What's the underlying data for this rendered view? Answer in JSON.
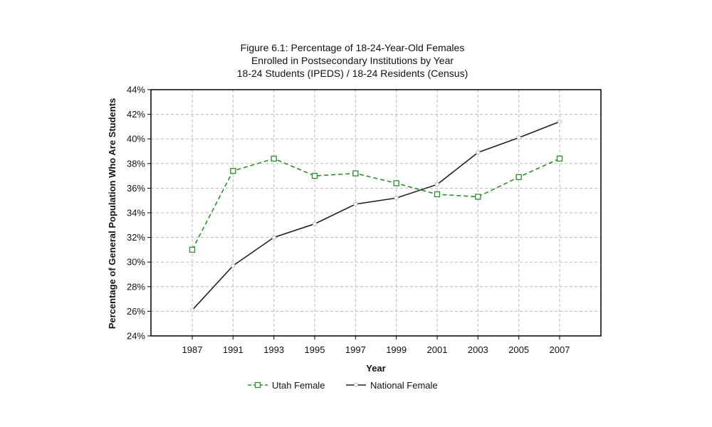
{
  "chart_data": {
    "type": "line",
    "title_lines": [
      "Figure 6.1: Percentage of 18-24-Year-Old Females",
      "Enrolled in Postsecondary Institutions by Year",
      "18-24 Students (IPEDS) / 18-24 Residents (Census)"
    ],
    "xlabel": "Year",
    "ylabel": "Percentage of General Population Who Are Students",
    "categories": [
      "1987",
      "1991",
      "1993",
      "1995",
      "1997",
      "1999",
      "2001",
      "2003",
      "2005",
      "2007"
    ],
    "y_ticks": [
      "24%",
      "26%",
      "28%",
      "30%",
      "32%",
      "34%",
      "36%",
      "38%",
      "40%",
      "42%",
      "44%"
    ],
    "ylim": [
      24,
      44
    ],
    "grid": true,
    "legend_position": "bottom",
    "series": [
      {
        "name": "Utah Female",
        "color": "#2e8b2e",
        "line_style": "dashed",
        "marker": "square",
        "values": [
          31.0,
          37.4,
          38.4,
          37.0,
          37.2,
          36.4,
          35.5,
          35.3,
          36.9,
          38.4
        ]
      },
      {
        "name": "National Female",
        "color": "#222222",
        "line_style": "solid",
        "marker": "circle",
        "values": [
          26.1,
          29.7,
          32.0,
          33.1,
          34.7,
          35.2,
          36.3,
          38.9,
          40.1,
          41.4
        ]
      }
    ]
  }
}
